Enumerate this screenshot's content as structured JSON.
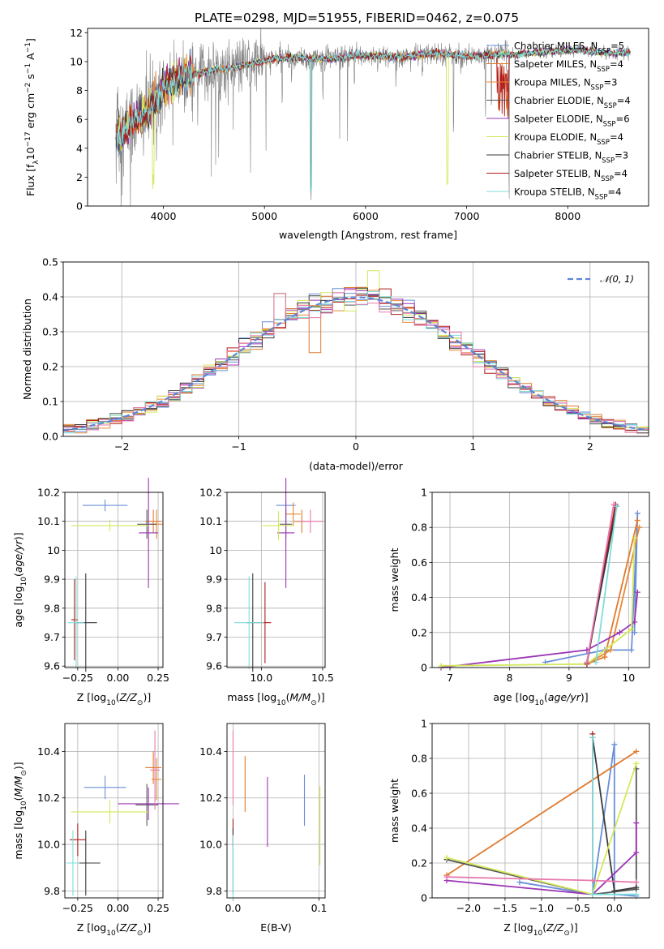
{
  "figure_title": "PLATE=0298, MJD=51955, FIBERID=0462, z=0.075",
  "palette": [
    "#6a8fd8",
    "#e07a2e",
    "#e88a36",
    "#555555",
    "#9b35b5",
    "#d4e85a",
    "#3a3a3a",
    "#b01c1c",
    "#7fdcdc",
    "#e87ab0"
  ],
  "chart_data": [
    {
      "id": "spectrum",
      "type": "line",
      "title": "PLATE=0298, MJD=51955, FIBERID=0462, z=0.075",
      "xlabel": "wavelength [Angstrom, rest frame]",
      "ylabel": "Flux [fλ10⁻¹⁷ erg cm⁻² s⁻¹ A⁻¹]",
      "xlim": [
        3250,
        8800
      ],
      "ylim": [
        0,
        12.3
      ],
      "xticks": [
        4000,
        5000,
        6000,
        7000,
        8000
      ],
      "yticks": [
        0,
        2,
        4,
        6,
        8,
        10,
        12
      ],
      "grid": false,
      "legend_position": "right",
      "continuum": [
        [
          3530,
          4.6
        ],
        [
          3600,
          5.0
        ],
        [
          3700,
          5.9
        ],
        [
          3800,
          6.3
        ],
        [
          3900,
          7.0
        ],
        [
          3950,
          7.5
        ],
        [
          4000,
          8.2
        ],
        [
          4100,
          8.7
        ],
        [
          4200,
          8.9
        ],
        [
          4300,
          9.1
        ],
        [
          4500,
          9.4
        ],
        [
          4700,
          9.6
        ],
        [
          4900,
          9.9
        ],
        [
          5100,
          10.2
        ],
        [
          5300,
          10.3
        ],
        [
          5500,
          10.2
        ],
        [
          5700,
          10.2
        ],
        [
          5900,
          10.4
        ],
        [
          6100,
          10.4
        ],
        [
          6300,
          10.3
        ],
        [
          6500,
          10.4
        ],
        [
          6700,
          10.6
        ],
        [
          6900,
          10.4
        ],
        [
          7100,
          10.4
        ],
        [
          7300,
          10.5
        ],
        [
          7500,
          10.5
        ],
        [
          7800,
          10.7
        ],
        [
          8100,
          10.8
        ],
        [
          8400,
          10.6
        ],
        [
          8600,
          10.6
        ]
      ],
      "series": [
        {
          "name": "Chabrier MILES, N_SSP=5",
          "name_main": "Chabrier MILES, N",
          "name_sub": "SSP",
          "name_tail": "=5",
          "color": "#6a8fd8"
        },
        {
          "name": "Salpeter MILES, N_SSP=4",
          "name_main": "Salpeter MILES, N",
          "name_sub": "SSP",
          "name_tail": "=4",
          "color": "#e07a2e"
        },
        {
          "name": "Kroupa MILES, N_SSP=3",
          "name_main": "Kroupa MILES, N",
          "name_sub": "SSP",
          "name_tail": "=3",
          "color": "#e88a36"
        },
        {
          "name": "Chabrier ELODIE, N_SSP=4",
          "name_main": "Chabrier ELODIE, N",
          "name_sub": "SSP",
          "name_tail": "=4",
          "color": "#555555"
        },
        {
          "name": "Salpeter ELODIE, N_SSP=6",
          "name_main": "Salpeter ELODIE, N",
          "name_sub": "SSP",
          "name_tail": "=6",
          "color": "#9b35b5"
        },
        {
          "name": "Kroupa ELODIE, N_SSP=4",
          "name_main": "Kroupa ELODIE, N",
          "name_sub": "SSP",
          "name_tail": "=4",
          "color": "#d4e85a"
        },
        {
          "name": "Chabrier STELIB, N_SSP=3",
          "name_main": "Chabrier STELIB, N",
          "name_sub": "SSP",
          "name_tail": "=3",
          "color": "#3a3a3a"
        },
        {
          "name": "Salpeter STELIB, N_SSP=4",
          "name_main": "Salpeter STELIB, N",
          "name_sub": "SSP",
          "name_tail": "=4",
          "color": "#b01c1c"
        },
        {
          "name": "Kroupa STELIB, N_SSP=4",
          "name_main": "Kroupa STELIB, N",
          "name_sub": "SSP",
          "name_tail": "=4",
          "color": "#7fdcdc"
        }
      ]
    },
    {
      "id": "residual_hist",
      "type": "line",
      "xlabel": "(data-model)/error",
      "ylabel": "Normed distribution",
      "xlim": [
        -2.5,
        2.5
      ],
      "ylim": [
        0,
        0.5
      ],
      "xticks": [
        -2,
        -1,
        0,
        1,
        2
      ],
      "xtick_labels": [
        "−2",
        "−1",
        "0",
        "1",
        "2"
      ],
      "yticks": [
        0.0,
        0.1,
        0.2,
        0.3,
        0.4,
        0.5
      ],
      "ytick_labels": [
        "0.0",
        "0.1",
        "0.2",
        "0.3",
        "0.4",
        "0.5"
      ],
      "grid": true,
      "legend_position": "top-right",
      "reference_label": "𝒩(0, 1)",
      "bin_width": 0.1
    },
    {
      "id": "age_vs_Z",
      "type": "scatter",
      "xlabel": "Z [log10(Z/Z☉)]",
      "ylabel": "age  [log10(age/yr)]",
      "xlim": [
        -0.33,
        0.28
      ],
      "ylim": [
        9.595,
        10.2
      ],
      "xticks": [
        -0.25,
        0.0,
        0.25
      ],
      "xtick_labels": [
        "−0.25",
        "0.00",
        "0.25"
      ],
      "yticks": [
        9.6,
        9.7,
        9.8,
        9.9,
        10.0,
        10.1,
        10.2
      ],
      "grid": true,
      "points": [
        {
          "x": -0.08,
          "y": 10.155,
          "xerr": 0.14,
          "yerr": 0.02,
          "color": "#6a8fd8"
        },
        {
          "x": 0.22,
          "y": 10.1,
          "xerr": 0.05,
          "yerr": 0.04,
          "color": "#e07a2e"
        },
        {
          "x": 0.24,
          "y": 10.09,
          "xerr": 0.04,
          "yerr": 0.05,
          "color": "#e88a36"
        },
        {
          "x": 0.18,
          "y": 10.09,
          "xerr": 0.06,
          "yerr": 0.05,
          "color": "#555555"
        },
        {
          "x": 0.19,
          "y": 10.06,
          "xerr": 0.06,
          "yerr": 0.19,
          "color": "#9b35b5"
        },
        {
          "x": -0.05,
          "y": 10.085,
          "xerr": 0.24,
          "yerr": 0.02,
          "color": "#d4e85a"
        },
        {
          "x": -0.2,
          "y": 9.75,
          "xerr": 0.07,
          "yerr": 0.17,
          "color": "#3a3a3a"
        },
        {
          "x": -0.27,
          "y": 9.76,
          "xerr": 0.02,
          "yerr": 0.14,
          "color": "#b01c1c"
        },
        {
          "x": -0.26,
          "y": 9.75,
          "xerr": 0.05,
          "yerr": 0.16,
          "color": "#7fdcdc"
        }
      ]
    },
    {
      "id": "age_vs_mass",
      "type": "scatter",
      "xlabel": "mass [log10(M/M☉)]",
      "xlim": [
        9.72,
        10.52
      ],
      "ylim": [
        9.595,
        10.2
      ],
      "xticks": [
        10.0,
        10.5
      ],
      "xtick_labels": [
        "10.0",
        "10.5"
      ],
      "yticks": [
        9.6,
        9.7,
        9.8,
        9.9,
        10.0,
        10.1,
        10.2
      ],
      "grid": true,
      "points": [
        {
          "x": 10.2,
          "y": 10.155,
          "xerr": 0.08,
          "yerr": 0.02,
          "color": "#6a8fd8"
        },
        {
          "x": 10.33,
          "y": 10.1,
          "xerr": 0.06,
          "yerr": 0.04,
          "color": "#e07a2e"
        },
        {
          "x": 10.26,
          "y": 10.125,
          "xerr": 0.06,
          "yerr": 0.04,
          "color": "#e88a36"
        },
        {
          "x": 10.2,
          "y": 10.09,
          "xerr": 0.05,
          "yerr": 0.05,
          "color": "#555555"
        },
        {
          "x": 10.2,
          "y": 10.06,
          "xerr": 0.07,
          "yerr": 0.19,
          "color": "#9b35b5"
        },
        {
          "x": 10.14,
          "y": 10.085,
          "xerr": 0.13,
          "yerr": 0.05,
          "color": "#d4e85a"
        },
        {
          "x": 9.93,
          "y": 9.75,
          "xerr": 0.05,
          "yerr": 0.17,
          "color": "#3a3a3a"
        },
        {
          "x": 10.03,
          "y": 9.75,
          "xerr": 0.05,
          "yerr": 0.14,
          "color": "#b01c1c"
        },
        {
          "x": 9.9,
          "y": 9.75,
          "xerr": 0.12,
          "yerr": 0.16,
          "color": "#7fdcdc"
        },
        {
          "x": 10.4,
          "y": 10.1,
          "xerr": 0.1,
          "yerr": 0.04,
          "color": "#e87ab0"
        }
      ]
    },
    {
      "id": "weight_vs_age",
      "type": "line",
      "xlabel": "age  [log10(age/yr)]",
      "ylabel": "mass weight",
      "xlim": [
        6.7,
        10.35
      ],
      "ylim": [
        0,
        1.0
      ],
      "xticks": [
        7,
        8,
        9,
        10
      ],
      "yticks": [
        0.0,
        0.2,
        0.4,
        0.6,
        0.8,
        1.0
      ],
      "grid": true,
      "series": [
        {
          "color": "#6a8fd8",
          "points": [
            [
              8.6,
              0.03
            ],
            [
              9.6,
              0.1
            ],
            [
              10.05,
              0.1
            ],
            [
              10.15,
              0.88
            ],
            [
              10.1,
              0.2
            ]
          ]
        },
        {
          "color": "#e07a2e",
          "points": [
            [
              9.3,
              0.02
            ],
            [
              9.6,
              0.06
            ],
            [
              10.15,
              0.84
            ]
          ]
        },
        {
          "color": "#e88a36",
          "points": [
            [
              9.3,
              0.02
            ],
            [
              9.7,
              0.1
            ],
            [
              10.18,
              0.8
            ]
          ]
        },
        {
          "color": "#9b35b5",
          "points": [
            [
              6.85,
              0.0
            ],
            [
              9.3,
              0.1
            ],
            [
              9.85,
              0.2
            ],
            [
              10.1,
              0.26
            ],
            [
              10.15,
              0.43
            ]
          ]
        },
        {
          "color": "#d4e85a",
          "points": [
            [
              6.85,
              0.01
            ],
            [
              9.3,
              0.02
            ],
            [
              10.05,
              0.22
            ],
            [
              10.1,
              0.74
            ]
          ]
        },
        {
          "color": "#b01c1c",
          "points": [
            [
              9.3,
              0.02
            ],
            [
              9.78,
              0.93
            ]
          ]
        },
        {
          "color": "#3a3a3a",
          "points": [
            [
              9.3,
              0.03
            ],
            [
              9.8,
              0.92
            ]
          ]
        },
        {
          "color": "#7fdcdc",
          "points": [
            [
              9.45,
              0.03
            ],
            [
              9.8,
              0.92
            ]
          ]
        },
        {
          "color": "#e87ab0",
          "points": [
            [
              9.3,
              0.03
            ],
            [
              9.75,
              0.93
            ]
          ]
        }
      ]
    },
    {
      "id": "mass_vs_Z",
      "type": "scatter",
      "xlabel": "Z [log10(Z/Z☉)]",
      "ylabel": "mass [log10(M/M☉)]",
      "xlim": [
        -0.33,
        0.28
      ],
      "ylim": [
        9.77,
        10.52
      ],
      "xticks": [
        -0.25,
        0.0,
        0.25
      ],
      "xtick_labels": [
        "−0.25",
        "0.00",
        "0.25"
      ],
      "yticks": [
        9.8,
        10.0,
        10.2,
        10.4
      ],
      "ytick_labels": [
        "9.8",
        "10.0",
        "10.2",
        "10.4"
      ],
      "grid": true,
      "points": [
        {
          "x": -0.08,
          "y": 10.245,
          "xerr": 0.13,
          "yerr": 0.05,
          "color": "#6a8fd8"
        },
        {
          "x": 0.22,
          "y": 10.33,
          "xerr": 0.05,
          "yerr": 0.07,
          "color": "#e07a2e"
        },
        {
          "x": 0.24,
          "y": 10.28,
          "xerr": 0.03,
          "yerr": 0.09,
          "color": "#e88a36"
        },
        {
          "x": 0.18,
          "y": 10.17,
          "xerr": 0.07,
          "yerr": 0.09,
          "color": "#555555"
        },
        {
          "x": 0.19,
          "y": 10.175,
          "xerr": 0.19,
          "yerr": 0.07,
          "color": "#9b35b5"
        },
        {
          "x": -0.05,
          "y": 10.14,
          "xerr": 0.24,
          "yerr": 0.05,
          "color": "#d4e85a"
        },
        {
          "x": -0.2,
          "y": 9.92,
          "xerr": 0.09,
          "yerr": 0.14,
          "color": "#3a3a3a"
        },
        {
          "x": -0.25,
          "y": 10.02,
          "xerr": 0.05,
          "yerr": 0.07,
          "color": "#b01c1c"
        },
        {
          "x": -0.28,
          "y": 9.92,
          "xerr": 0.04,
          "yerr": 0.14,
          "color": "#7fdcdc"
        },
        {
          "x": 0.23,
          "y": 10.32,
          "xerr": 0.03,
          "yerr": 0.17,
          "color": "#e87ab0"
        }
      ]
    },
    {
      "id": "mass_vs_EBV",
      "type": "scatter",
      "xlabel": "E(B-V)",
      "xlim": [
        -0.007,
        0.107
      ],
      "ylim": [
        9.77,
        10.52
      ],
      "xticks": [
        0.0,
        0.1
      ],
      "xtick_labels": [
        "0.0",
        "0.1"
      ],
      "yticks": [
        9.8,
        10.0,
        10.2,
        10.4
      ],
      "ytick_labels": [
        "9.8",
        "10.0",
        "10.2",
        "10.4"
      ],
      "grid": true,
      "points": [
        {
          "x": 0.083,
          "y": 10.19,
          "yerr": 0.11,
          "color": "#6a8fd8"
        },
        {
          "x": 0.014,
          "y": 10.26,
          "yerr": 0.12,
          "color": "#e07a2e"
        },
        {
          "x": 0.0,
          "y": 10.05,
          "yerr": 0.06,
          "color": "#b01c1c"
        },
        {
          "x": 0.04,
          "y": 10.14,
          "yerr": 0.15,
          "color": "#9b35b5"
        },
        {
          "x": 0.101,
          "y": 10.08,
          "yerr": 0.17,
          "color": "#d4e85a"
        },
        {
          "x": 0.0,
          "y": 9.93,
          "yerr": 0.14,
          "color": "#3a3a3a"
        },
        {
          "x": 0.0,
          "y": 9.9,
          "yerr": 0.14,
          "color": "#7fdcdc"
        },
        {
          "x": 0.0,
          "y": 10.33,
          "yerr": 0.16,
          "color": "#e87ab0"
        }
      ]
    },
    {
      "id": "weight_vs_Z",
      "type": "line",
      "xlabel": "Z [log10(Z/Z☉)]",
      "ylabel": "mass weight",
      "xlim": [
        -2.5,
        0.48
      ],
      "ylim": [
        0,
        1.0
      ],
      "xticks": [
        -2.0,
        -1.5,
        -1.0,
        -0.5,
        0.0
      ],
      "xtick_labels": [
        "−2.0",
        "−1.5",
        "−1.0",
        "−0.5",
        "0.0"
      ],
      "yticks": [
        0.0,
        0.2,
        0.4,
        0.6,
        0.8,
        1.0
      ],
      "grid": true,
      "series": [
        {
          "color": "#6a8fd8",
          "points": [
            [
              -1.3,
              0.09
            ],
            [
              -0.3,
              0.02
            ],
            [
              0.0,
              0.88
            ],
            [
              0.0,
              0.02
            ],
            [
              0.3,
              0.01
            ]
          ]
        },
        {
          "color": "#e07a2e",
          "points": [
            [
              -2.3,
              0.13
            ],
            [
              0.3,
              0.84
            ]
          ]
        },
        {
          "color": "#555555",
          "points": [
            [
              -2.3,
              0.22
            ],
            [
              -0.3,
              0.02
            ],
            [
              0.3,
              0.05
            ],
            [
              0.3,
              0.74
            ]
          ]
        },
        {
          "color": "#3a3a3a",
          "points": [
            [
              -0.3,
              0.92
            ],
            [
              0.0,
              0.04
            ],
            [
              0.3,
              0.06
            ]
          ]
        },
        {
          "color": "#b01c1c",
          "points": [
            [
              -0.3,
              0.94
            ],
            [
              -0.3,
              0.02
            ]
          ]
        },
        {
          "color": "#9b35b5",
          "points": [
            [
              -2.3,
              0.1
            ],
            [
              -0.3,
              0.02
            ],
            [
              0.3,
              0.26
            ],
            [
              0.3,
              0.43
            ]
          ]
        },
        {
          "color": "#d4e85a",
          "points": [
            [
              -2.3,
              0.23
            ],
            [
              -0.3,
              0.02
            ],
            [
              0.3,
              0.77
            ]
          ]
        },
        {
          "color": "#7fdcdc",
          "points": [
            [
              -0.3,
              0.92
            ],
            [
              -0.3,
              0.02
            ],
            [
              0.3,
              0.02
            ]
          ]
        },
        {
          "color": "#e87ab0",
          "points": [
            [
              -2.3,
              0.12
            ],
            [
              -0.3,
              0.1
            ],
            [
              0.3,
              0.09
            ]
          ]
        }
      ]
    }
  ]
}
